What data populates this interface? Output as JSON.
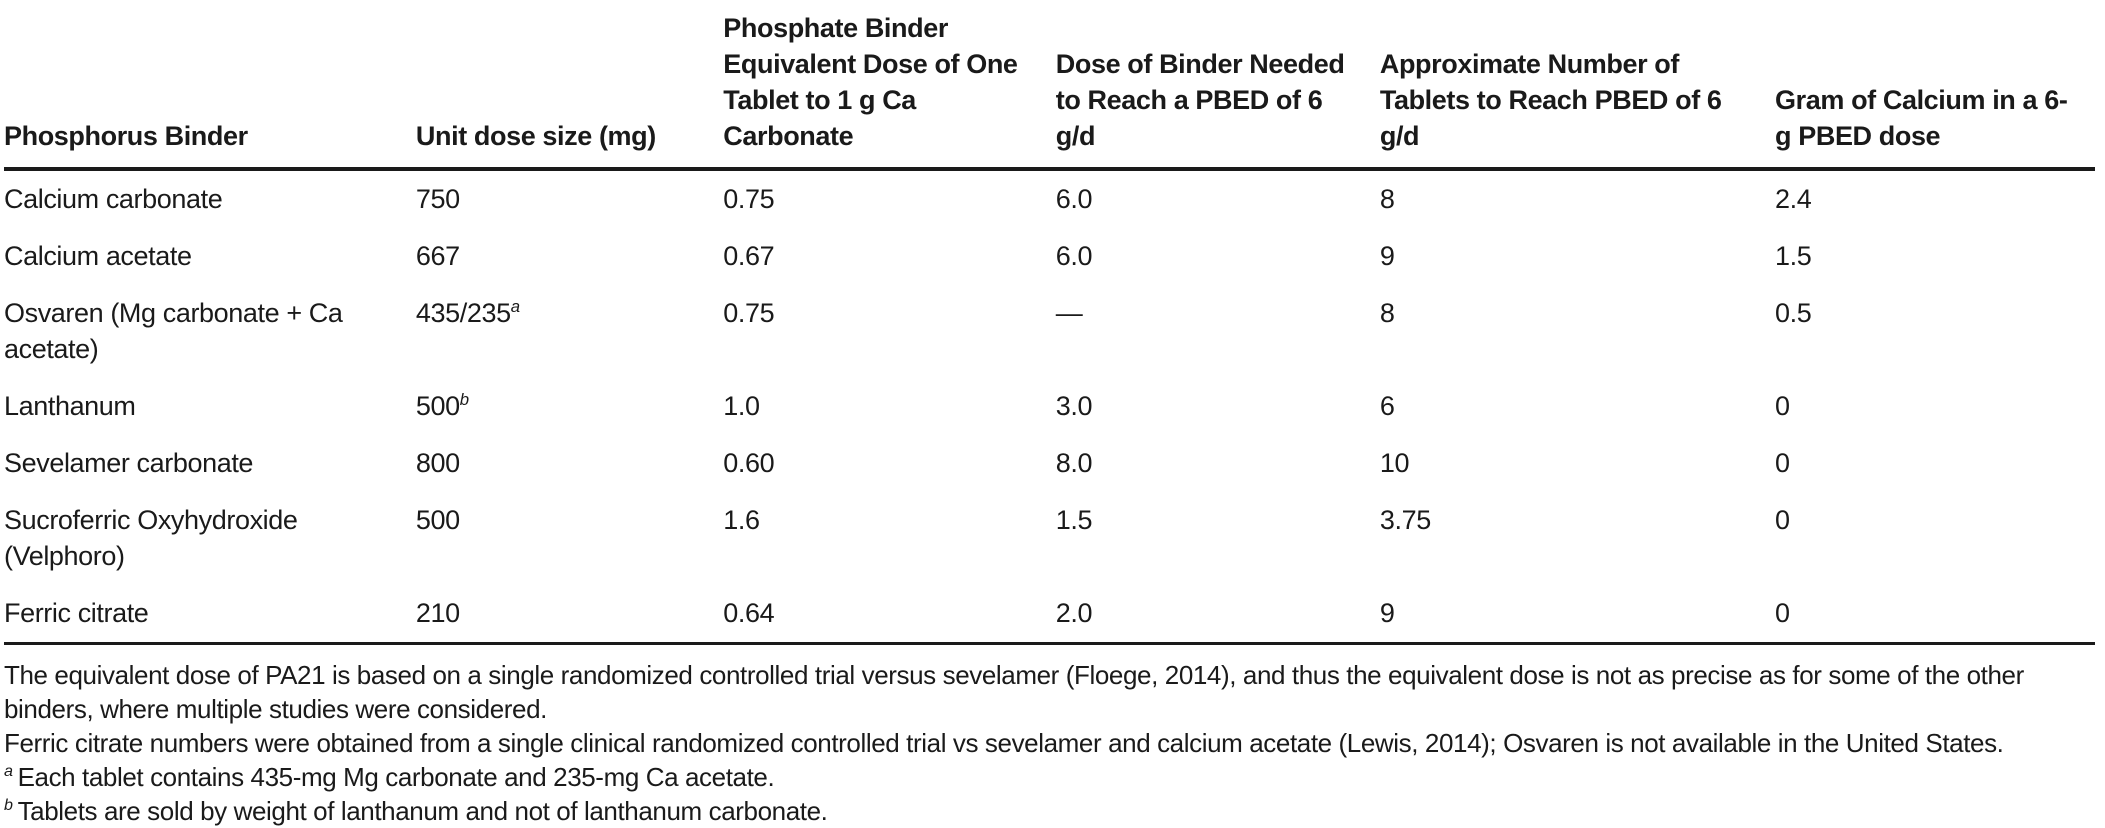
{
  "table": {
    "headers": [
      "Phosphorus Binder",
      "Unit dose size (mg)",
      "Phosphate Binder Equivalent Dose of One Tablet to 1 g Ca Carbonate",
      "Dose of Binder Needed to Reach a PBED of 6 g/d",
      "Approximate Number of Tablets to Reach PBED of 6 g/d",
      "Gram of Calcium in a 6-g PBED dose"
    ],
    "rows": [
      {
        "name": "Calcium carbonate",
        "unit_dose": "750",
        "unit_dose_sup": "",
        "equiv_dose": "0.75",
        "dose_needed": "6.0",
        "num_tablets": "8",
        "gram_calcium": "2.4"
      },
      {
        "name": "Calcium acetate",
        "unit_dose": "667",
        "unit_dose_sup": "",
        "equiv_dose": "0.67",
        "dose_needed": "6.0",
        "num_tablets": "9",
        "gram_calcium": "1.5"
      },
      {
        "name": "Osvaren (Mg carbonate + Ca acetate)",
        "unit_dose": "435/235",
        "unit_dose_sup": "a",
        "equiv_dose": "0.75",
        "dose_needed": "—",
        "num_tablets": "8",
        "gram_calcium": "0.5"
      },
      {
        "name": "Lanthanum",
        "unit_dose": "500",
        "unit_dose_sup": "b",
        "equiv_dose": "1.0",
        "dose_needed": "3.0",
        "num_tablets": "6",
        "gram_calcium": "0"
      },
      {
        "name": "Sevelamer carbonate",
        "unit_dose": "800",
        "unit_dose_sup": "",
        "equiv_dose": "0.60",
        "dose_needed": "8.0",
        "num_tablets": "10",
        "gram_calcium": "0"
      },
      {
        "name": "Sucroferric Oxyhydroxide (Velphoro)",
        "unit_dose": "500",
        "unit_dose_sup": "",
        "equiv_dose": "1.6",
        "dose_needed": "1.5",
        "num_tablets": "3.75",
        "gram_calcium": "0"
      },
      {
        "name": "Ferric citrate",
        "unit_dose": "210",
        "unit_dose_sup": "",
        "equiv_dose": "0.64",
        "dose_needed": "2.0",
        "num_tablets": "9",
        "gram_calcium": "0"
      }
    ]
  },
  "footnotes": [
    {
      "marker": "",
      "text": "The equivalent dose of PA21 is based on a single randomized controlled trial versus sevelamer (Floege, 2014), and thus the equivalent dose is not as precise as for some of the other binders, where multiple studies were considered."
    },
    {
      "marker": "",
      "text": "Ferric citrate numbers were obtained from a single clinical randomized controlled trial vs sevelamer and calcium acetate (Lewis, 2014); Osvaren is not available in the United States."
    },
    {
      "marker": "a",
      "text": "Each tablet contains 435-mg Mg carbonate and 235-mg Ca acetate."
    },
    {
      "marker": "b",
      "text": "Tablets are sold by weight of lanthanum and not of lanthanum carbonate."
    }
  ],
  "colors": {
    "text": "#1a1a1a",
    "rule": "#1a1a1a",
    "background": "#ffffff"
  }
}
